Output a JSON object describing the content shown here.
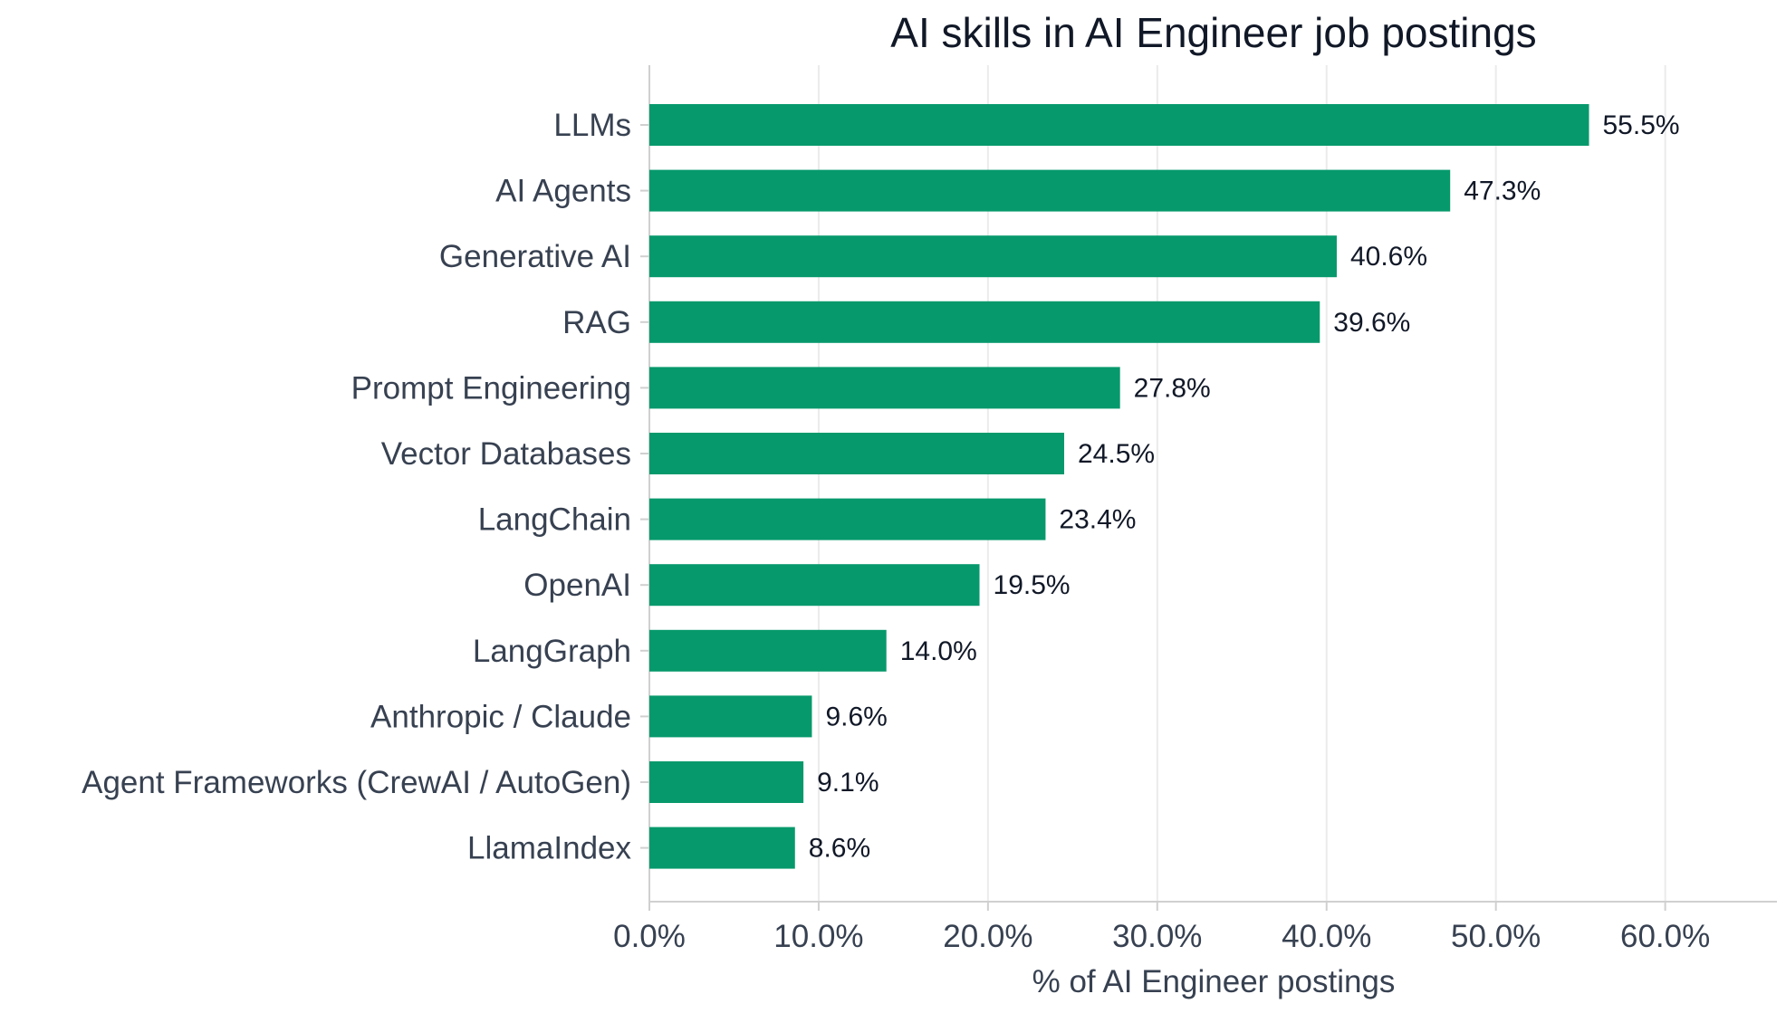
{
  "chart_data": {
    "type": "bar",
    "orientation": "horizontal",
    "title": "AI skills in AI Engineer job postings",
    "xlabel": "% of AI Engineer postings",
    "ylabel": "",
    "categories": [
      "LLMs",
      "AI Agents",
      "Generative AI",
      "RAG",
      "Prompt Engineering",
      "Vector Databases",
      "LangChain",
      "OpenAI",
      "LangGraph",
      "Anthropic / Claude",
      "Agent Frameworks (CrewAI / AutoGen)",
      "LlamaIndex"
    ],
    "values": [
      55.5,
      47.3,
      40.6,
      39.6,
      27.8,
      24.5,
      23.4,
      19.5,
      14.0,
      9.6,
      9.1,
      8.6
    ],
    "value_labels": [
      "55.5%",
      "47.3%",
      "40.6%",
      "39.6%",
      "27.8%",
      "24.5%",
      "23.4%",
      "19.5%",
      "14.0%",
      "9.6%",
      "9.1%",
      "8.6%"
    ],
    "xticks": [
      0,
      10,
      20,
      30,
      40,
      50,
      60
    ],
    "xtick_labels": [
      "0.0%",
      "10.0%",
      "20.0%",
      "30.0%",
      "40.0%",
      "50.0%",
      "60.0%"
    ],
    "xlim": [
      0,
      66.6
    ],
    "grid": "vertical",
    "legend": "none",
    "colors": {
      "bar": "#06996b",
      "grid": "#ebebeb",
      "axis": "#d0d0d0",
      "text": "#374151",
      "title": "#111827"
    }
  }
}
